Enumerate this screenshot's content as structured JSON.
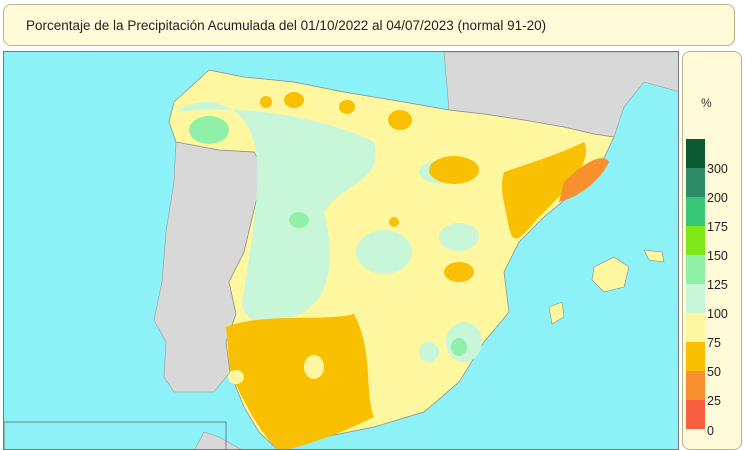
{
  "title": "Porcentaje de la Precipitación Acumulada del 01/10/2022 al 04/07/2023 (normal 91-20)",
  "legend": {
    "unit": "%",
    "classes": [
      {
        "label": "300",
        "color": "#0b5a34"
      },
      {
        "label": "200",
        "color": "#2f8c68"
      },
      {
        "label": "175",
        "color": "#36c878"
      },
      {
        "label": "150",
        "color": "#80e818"
      },
      {
        "label": "125",
        "color": "#90f0a8"
      },
      {
        "label": "100",
        "color": "#c8f6d8"
      },
      {
        "label": "75",
        "color": "#fff6a0"
      },
      {
        "label": "50",
        "color": "#f8c000"
      },
      {
        "label": "25",
        "color": "#f89030"
      },
      {
        "label": "0",
        "color": "#f86040"
      }
    ]
  },
  "colors": {
    "sea": "#8cf2f8",
    "other_land": "#d8d8d8",
    "panel": "#fffbd8"
  }
}
